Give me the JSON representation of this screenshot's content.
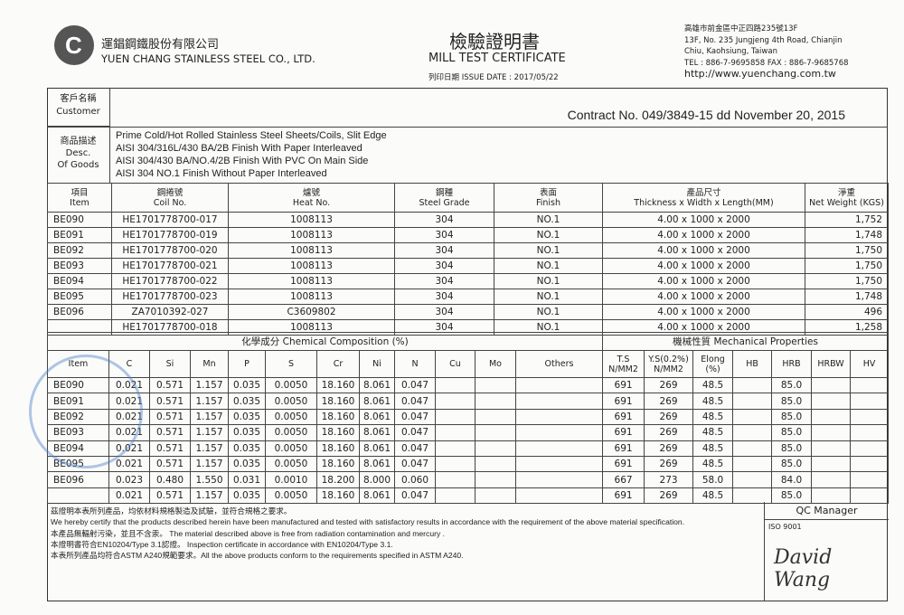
{
  "company": {
    "name_cn": "運錩鋼鐵股份有限公司",
    "name_en": "YUEN CHANG STAINLESS STEEL CO., LTD.",
    "address_cn": "高雄市前金區中正四路235號13F",
    "address_line1": "13F, No. 235 Jungjeng 4th Road, Chianjin",
    "address_line2": "Chiu, Kaohsiung, Taiwan",
    "tel_fax": "TEL : 886-7-9695858   FAX : 886-7-9685768",
    "website": "http://www.yuenchang.com.tw"
  },
  "title": {
    "cn": "檢驗證明書",
    "en": "MILL TEST CERTIFICATE",
    "issue_date": "列印日期   ISSUE DATE : 2017/05/22"
  },
  "customer": {
    "label_cn": "客戶名稱",
    "label_en": "Customer",
    "contract": "Contract No. 049/3849-15 dd November 20, 2015"
  },
  "goods": {
    "label_cn": "商品描述",
    "label_en1": "Desc.",
    "label_en2": "Of Goods",
    "lines": [
      "Prime Cold/Hot Rolled Stainless Steel Sheets/Coils, Slit Edge",
      "AISI 304/316L/430 BA/2B Finish With Paper Interleaved",
      "AISI 304/430 BA/NO.4/2B Finish With PVC On Main Side",
      "AISI 304 NO.1 Finish Without Paper Interleaved"
    ]
  },
  "products": {
    "headers": [
      [
        "項目",
        "Item"
      ],
      [
        "鋼捲號",
        "Coil No."
      ],
      [
        "爐號",
        "Heat No."
      ],
      [
        "鋼種",
        "Steel Grade"
      ],
      [
        "表面",
        "Finish"
      ],
      [
        "產品尺寸",
        "Thickness x Width x Length(MM)"
      ],
      [
        "淨重",
        "Net Weight (KGS)"
      ]
    ],
    "rows": [
      [
        "BE090",
        "HE1701778700-017",
        "1008113",
        "304",
        "NO.1",
        "4.00 x 1000 x 2000",
        "1,752"
      ],
      [
        "BE091",
        "HE1701778700-019",
        "1008113",
        "304",
        "NO.1",
        "4.00 x 1000 x 2000",
        "1,748"
      ],
      [
        "BE092",
        "HE1701778700-020",
        "1008113",
        "304",
        "NO.1",
        "4.00 x 1000 x 2000",
        "1,750"
      ],
      [
        "BE093",
        "HE1701778700-021",
        "1008113",
        "304",
        "NO.1",
        "4.00 x 1000 x 2000",
        "1,750"
      ],
      [
        "BE094",
        "HE1701778700-022",
        "1008113",
        "304",
        "NO.1",
        "4.00 x 1000 x 2000",
        "1,750"
      ],
      [
        "BE095",
        "HE1701778700-023",
        "1008113",
        "304",
        "NO.1",
        "4.00 x 1000 x 2000",
        "1,748"
      ],
      [
        "BE096",
        "ZA7010392-027",
        "C3609802",
        "304",
        "NO.1",
        "4.00 x 1000 x 2000",
        "496"
      ],
      [
        "",
        "HE1701778700-018",
        "1008113",
        "304",
        "NO.1",
        "4.00 x 1000 x 2000",
        "1,258"
      ]
    ]
  },
  "chemical": {
    "title": "化學成分    Chemical Composition      (%)",
    "mech_title": "機械性質    Mechanical Properties",
    "headers": [
      "Item",
      "C",
      "Si",
      "Mn",
      "P",
      "S",
      "Cr",
      "Ni",
      "N",
      "Cu",
      "Mo",
      "Others",
      "T.S\nN/MM2",
      "Y.S(0.2%)\nN/MM2",
      "Elong\n(%)",
      "HB",
      "HRB",
      "HRBW",
      "HV"
    ],
    "rows": [
      [
        "BE090",
        "0.021",
        "0.571",
        "1.157",
        "0.035",
        "0.0050",
        "18.160",
        "8.061",
        "0.047",
        "",
        "",
        "",
        "691",
        "269",
        "48.5",
        "",
        "85.0",
        "",
        ""
      ],
      [
        "BE091",
        "0.021",
        "0.571",
        "1.157",
        "0.035",
        "0.0050",
        "18.160",
        "8.061",
        "0.047",
        "",
        "",
        "",
        "691",
        "269",
        "48.5",
        "",
        "85.0",
        "",
        ""
      ],
      [
        "BE092",
        "0.021",
        "0.571",
        "1.157",
        "0.035",
        "0.0050",
        "18.160",
        "8.061",
        "0.047",
        "",
        "",
        "",
        "691",
        "269",
        "48.5",
        "",
        "85.0",
        "",
        ""
      ],
      [
        "BE093",
        "0.021",
        "0.571",
        "1.157",
        "0.035",
        "0.0050",
        "18.160",
        "8.061",
        "0.047",
        "",
        "",
        "",
        "691",
        "269",
        "48.5",
        "",
        "85.0",
        "",
        ""
      ],
      [
        "BE094",
        "0.021",
        "0.571",
        "1.157",
        "0.035",
        "0.0050",
        "18.160",
        "8.061",
        "0.047",
        "",
        "",
        "",
        "691",
        "269",
        "48.5",
        "",
        "85.0",
        "",
        ""
      ],
      [
        "BE095",
        "0.021",
        "0.571",
        "1.157",
        "0.035",
        "0.0050",
        "18.160",
        "8.061",
        "0.047",
        "",
        "",
        "",
        "691",
        "269",
        "48.5",
        "",
        "85.0",
        "",
        ""
      ],
      [
        "BE096",
        "0.023",
        "0.480",
        "1.550",
        "0.031",
        "0.0010",
        "18.200",
        "8.000",
        "0.060",
        "",
        "",
        "",
        "667",
        "273",
        "58.0",
        "",
        "84.0",
        "",
        ""
      ],
      [
        "",
        "0.021",
        "0.571",
        "1.157",
        "0.035",
        "0.0050",
        "18.160",
        "8.061",
        "0.047",
        "",
        "",
        "",
        "691",
        "269",
        "48.5",
        "",
        "85.0",
        "",
        ""
      ]
    ]
  },
  "footer": {
    "lines": [
      "茲證明本表所列產品，均依材料規格製造及試驗，並符合規格之要求。",
      "We hereby certify that the products described herein have been manufactured and tested with  satisfactory results in accordance with the requirement of the above material specification.",
      "本產品無輻射污染，並且不含汞。 The material described above is free from radiation contamination and mercury .",
      "本證明書符合EN10204/Type 3.1認證。 Inspection certificate in accordance with EN10204/Type 3.1.",
      "本表所列產品均符合ASTM A240規範要求。All the above products conform to the requirements specified in ASTM A240."
    ],
    "qc_label": "QC Manager",
    "iso": "ISO 9001",
    "signature": "David Wang"
  }
}
